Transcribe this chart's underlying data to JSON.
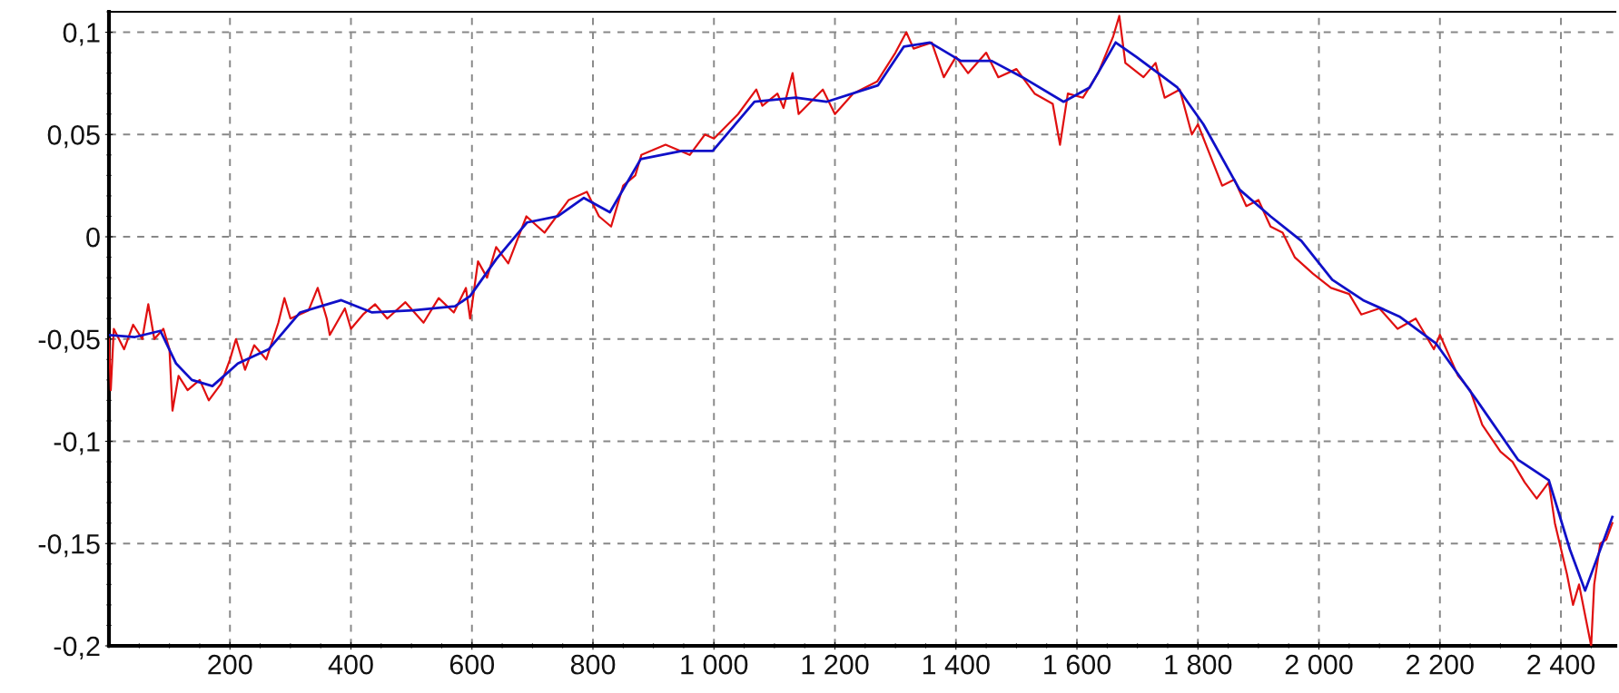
{
  "chart_data": {
    "type": "line",
    "grid": true,
    "marker": "none",
    "line_style": "solid",
    "xlim": [
      0,
      2490
    ],
    "ylim": [
      -0.2,
      0.11
    ],
    "xticks": [
      200,
      400,
      600,
      800,
      {
        "value": 1000,
        "label": "1 000"
      },
      {
        "value": 1200,
        "label": "1 200"
      },
      {
        "value": 1400,
        "label": "1 400"
      },
      {
        "value": 1600,
        "label": "1 600"
      },
      {
        "value": 1800,
        "label": "1 800"
      },
      {
        "value": 2000,
        "label": "2 000"
      },
      {
        "value": 2200,
        "label": "2 200"
      },
      {
        "value": 2400,
        "label": "2 400"
      }
    ],
    "yticks": [
      {
        "value": -0.2,
        "label": "-0,2"
      },
      {
        "value": -0.15,
        "label": "-0,15"
      },
      {
        "value": -0.1,
        "label": "-0,1"
      },
      {
        "value": -0.05,
        "label": "-0,05"
      },
      0,
      {
        "value": 0.05,
        "label": "0,05"
      },
      {
        "value": 0.1,
        "label": "0,1"
      }
    ],
    "series": [
      {
        "color": "#e01010",
        "x": [
          0,
          3,
          8,
          25,
          40,
          55,
          65,
          75,
          90,
          100,
          105,
          115,
          130,
          150,
          165,
          185,
          200,
          210,
          225,
          240,
          260,
          280,
          290,
          300,
          330,
          345,
          360,
          365,
          390,
          400,
          420,
          440,
          460,
          490,
          520,
          545,
          570,
          590,
          597,
          610,
          625,
          640,
          660,
          690,
          720,
          760,
          790,
          810,
          830,
          850,
          870,
          880,
          920,
          960,
          985,
          1000,
          1040,
          1070,
          1080,
          1105,
          1115,
          1130,
          1140,
          1180,
          1200,
          1230,
          1270,
          1300,
          1318,
          1330,
          1360,
          1380,
          1400,
          1420,
          1450,
          1470,
          1500,
          1530,
          1560,
          1572,
          1585,
          1610,
          1635,
          1660,
          1670,
          1680,
          1710,
          1730,
          1745,
          1770,
          1790,
          1800,
          1820,
          1840,
          1860,
          1880,
          1900,
          1920,
          1940,
          1960,
          1990,
          2020,
          2050,
          2070,
          2100,
          2130,
          2160,
          2190,
          2200,
          2230,
          2250,
          2270,
          2300,
          2320,
          2340,
          2360,
          2380,
          2390,
          2410,
          2420,
          2430,
          2440,
          2450,
          2455,
          2465,
          2475,
          2485
        ],
        "values": [
          -0.05,
          -0.075,
          -0.045,
          -0.055,
          -0.043,
          -0.05,
          -0.033,
          -0.05,
          -0.045,
          -0.055,
          -0.085,
          -0.068,
          -0.075,
          -0.07,
          -0.08,
          -0.072,
          -0.06,
          -0.05,
          -0.065,
          -0.053,
          -0.06,
          -0.042,
          -0.03,
          -0.04,
          -0.036,
          -0.025,
          -0.04,
          -0.048,
          -0.035,
          -0.045,
          -0.038,
          -0.033,
          -0.04,
          -0.032,
          -0.042,
          -0.03,
          -0.037,
          -0.025,
          -0.04,
          -0.012,
          -0.02,
          -0.005,
          -0.013,
          0.01,
          0.002,
          0.018,
          0.022,
          0.01,
          0.005,
          0.025,
          0.03,
          0.04,
          0.045,
          0.04,
          0.05,
          0.048,
          0.06,
          0.072,
          0.064,
          0.07,
          0.063,
          0.08,
          0.06,
          0.072,
          0.06,
          0.07,
          0.076,
          0.09,
          0.1,
          0.092,
          0.095,
          0.078,
          0.088,
          0.08,
          0.09,
          0.078,
          0.082,
          0.07,
          0.065,
          0.045,
          0.07,
          0.068,
          0.08,
          0.098,
          0.108,
          0.085,
          0.078,
          0.085,
          0.068,
          0.072,
          0.05,
          0.055,
          0.04,
          0.025,
          0.028,
          0.015,
          0.018,
          0.005,
          0.002,
          -0.01,
          -0.018,
          -0.025,
          -0.028,
          -0.038,
          -0.035,
          -0.045,
          -0.04,
          -0.055,
          -0.048,
          -0.068,
          -0.075,
          -0.092,
          -0.105,
          -0.11,
          -0.12,
          -0.128,
          -0.12,
          -0.14,
          -0.165,
          -0.18,
          -0.17,
          -0.185,
          -0.2,
          -0.17,
          -0.15,
          -0.148,
          -0.14
        ]
      },
      {
        "color": "#1010c8",
        "x": [
          0,
          43,
          85,
          111,
          137,
          171,
          213,
          264,
          316,
          350,
          384,
          435,
          503,
          572,
          597,
          640,
          691,
          742,
          785,
          828,
          879,
          947,
          998,
          1067,
          1135,
          1186,
          1271,
          1314,
          1357,
          1408,
          1459,
          1510,
          1578,
          1621,
          1664,
          1698,
          1766,
          1809,
          1869,
          1920,
          1971,
          2022,
          2073,
          2133,
          2193,
          2261,
          2329,
          2380,
          2415,
          2440,
          2485
        ],
        "values": [
          -0.048,
          -0.049,
          -0.046,
          -0.062,
          -0.07,
          -0.073,
          -0.062,
          -0.055,
          -0.037,
          -0.034,
          -0.031,
          -0.037,
          -0.036,
          -0.034,
          -0.029,
          -0.011,
          0.007,
          0.01,
          0.019,
          0.012,
          0.038,
          0.042,
          0.042,
          0.066,
          0.068,
          0.066,
          0.074,
          0.093,
          0.095,
          0.086,
          0.086,
          0.078,
          0.066,
          0.073,
          0.095,
          0.088,
          0.073,
          0.055,
          0.023,
          0.01,
          -0.002,
          -0.021,
          -0.031,
          -0.039,
          -0.052,
          -0.08,
          -0.109,
          -0.119,
          -0.153,
          -0.173,
          -0.137
        ]
      }
    ]
  }
}
